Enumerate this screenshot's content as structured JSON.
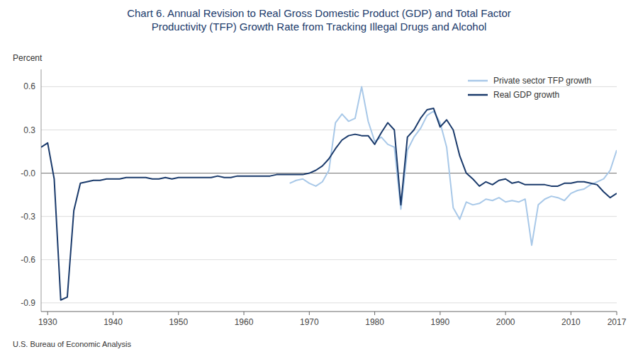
{
  "chart_data": {
    "type": "line",
    "title": "Chart 6. Annual Revision to Real Gross Domestic Product (GDP) and Total Factor\nProductivity (TFP) Growth Rate from Tracking Illegal Drugs and Alcohol",
    "ylabel": "Percent",
    "source": "U.S. Bureau of Economic Analysis",
    "xlim": [
      1929,
      2017
    ],
    "xticks": [
      1930,
      1940,
      1950,
      1960,
      1970,
      1980,
      1990,
      2000,
      2010,
      2017
    ],
    "ylim": [
      -0.96,
      0.72
    ],
    "yticks": [
      -0.9,
      -0.6,
      -0.3,
      {
        "value": 0.0,
        "label": "-0.0"
      },
      0.3,
      0.6
    ],
    "grid": true,
    "legend": "upper right",
    "series": [
      {
        "name": "Private sector TFP growth",
        "color": "#a8c8e8",
        "x": [
          1967,
          1968,
          1969,
          1970,
          1971,
          1972,
          1973,
          1974,
          1975,
          1976,
          1977,
          1978,
          1979,
          1980,
          1981,
          1982,
          1983,
          1984,
          1985,
          1986,
          1987,
          1988,
          1989,
          1990,
          1991,
          1992,
          1993,
          1994,
          1995,
          1996,
          1997,
          1998,
          1999,
          2000,
          2001,
          2002,
          2003,
          2004,
          2005,
          2006,
          2007,
          2008,
          2009,
          2010,
          2011,
          2012,
          2013,
          2014,
          2015,
          2016,
          2017
        ],
        "values": [
          -0.07,
          -0.05,
          -0.04,
          -0.07,
          -0.09,
          -0.06,
          0.02,
          0.35,
          0.41,
          0.36,
          0.38,
          0.6,
          0.36,
          0.22,
          0.25,
          0.2,
          0.18,
          -0.25,
          0.16,
          0.25,
          0.31,
          0.4,
          0.43,
          0.35,
          0.18,
          -0.24,
          -0.32,
          -0.2,
          -0.22,
          -0.21,
          -0.18,
          -0.19,
          -0.17,
          -0.2,
          -0.19,
          -0.2,
          -0.18,
          -0.5,
          -0.22,
          -0.18,
          -0.16,
          -0.17,
          -0.19,
          -0.14,
          -0.12,
          -0.11,
          -0.08,
          -0.06,
          -0.04,
          0.02,
          0.16
        ]
      },
      {
        "name": "Real GDP growth",
        "color": "#1a3a6b",
        "x": [
          1929,
          1930,
          1931,
          1932,
          1933,
          1934,
          1935,
          1936,
          1937,
          1938,
          1939,
          1940,
          1941,
          1942,
          1943,
          1944,
          1945,
          1946,
          1947,
          1948,
          1949,
          1950,
          1951,
          1952,
          1953,
          1954,
          1955,
          1956,
          1957,
          1958,
          1959,
          1960,
          1961,
          1962,
          1963,
          1964,
          1965,
          1966,
          1967,
          1968,
          1969,
          1970,
          1971,
          1972,
          1973,
          1974,
          1975,
          1976,
          1977,
          1978,
          1979,
          1980,
          1981,
          1982,
          1983,
          1984,
          1985,
          1986,
          1987,
          1988,
          1989,
          1990,
          1991,
          1992,
          1993,
          1994,
          1995,
          1996,
          1997,
          1998,
          1999,
          2000,
          2001,
          2002,
          2003,
          2004,
          2005,
          2006,
          2007,
          2008,
          2009,
          2010,
          2011,
          2012,
          2013,
          2014,
          2015,
          2016,
          2017
        ],
        "values": [
          0.18,
          0.21,
          -0.04,
          -0.88,
          -0.86,
          -0.26,
          -0.07,
          -0.06,
          -0.05,
          -0.05,
          -0.04,
          -0.04,
          -0.04,
          -0.03,
          -0.03,
          -0.03,
          -0.03,
          -0.04,
          -0.04,
          -0.03,
          -0.04,
          -0.03,
          -0.03,
          -0.03,
          -0.03,
          -0.03,
          -0.03,
          -0.02,
          -0.03,
          -0.03,
          -0.02,
          -0.02,
          -0.02,
          -0.02,
          -0.02,
          -0.02,
          -0.01,
          -0.01,
          -0.01,
          -0.01,
          -0.01,
          0.0,
          0.02,
          0.05,
          0.1,
          0.17,
          0.23,
          0.26,
          0.27,
          0.26,
          0.26,
          0.2,
          0.28,
          0.35,
          0.3,
          -0.22,
          0.25,
          0.3,
          0.38,
          0.44,
          0.45,
          0.32,
          0.37,
          0.3,
          0.12,
          0.0,
          -0.04,
          -0.09,
          -0.06,
          -0.08,
          -0.05,
          -0.04,
          -0.07,
          -0.06,
          -0.08,
          -0.08,
          -0.08,
          -0.08,
          -0.09,
          -0.09,
          -0.07,
          -0.07,
          -0.06,
          -0.06,
          -0.07,
          -0.08,
          -0.13,
          -0.17,
          -0.14
        ]
      }
    ]
  }
}
